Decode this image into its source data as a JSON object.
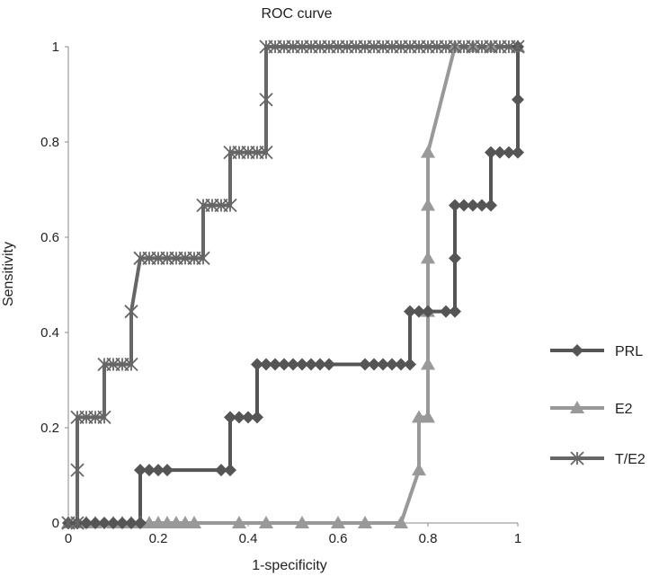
{
  "chart_data": {
    "type": "line",
    "title": "ROC curve",
    "xlabel": "1-specificity",
    "ylabel": "Sensitivity",
    "xlim": [
      0,
      1
    ],
    "ylim": [
      0,
      1
    ],
    "x_ticks": [
      "0",
      "0.2",
      "0.4",
      "0.6",
      "0.8",
      "1"
    ],
    "y_ticks": [
      "0",
      "0.2",
      "0.4",
      "0.6",
      "0.8",
      "1"
    ],
    "grid": false,
    "legend_position": "right",
    "series": [
      {
        "name": "PRL",
        "marker": "diamond",
        "color": "#555555",
        "points": [
          [
            0,
            0
          ],
          [
            0.02,
            0
          ],
          [
            0.04,
            0
          ],
          [
            0.06,
            0
          ],
          [
            0.08,
            0
          ],
          [
            0.1,
            0
          ],
          [
            0.12,
            0
          ],
          [
            0.14,
            0
          ],
          [
            0.16,
            0
          ],
          [
            0.16,
            0.111
          ],
          [
            0.18,
            0.111
          ],
          [
            0.2,
            0.111
          ],
          [
            0.22,
            0.111
          ],
          [
            0.34,
            0.111
          ],
          [
            0.36,
            0.111
          ],
          [
            0.36,
            0.222
          ],
          [
            0.38,
            0.222
          ],
          [
            0.4,
            0.222
          ],
          [
            0.42,
            0.222
          ],
          [
            0.42,
            0.333
          ],
          [
            0.44,
            0.333
          ],
          [
            0.46,
            0.333
          ],
          [
            0.48,
            0.333
          ],
          [
            0.5,
            0.333
          ],
          [
            0.52,
            0.333
          ],
          [
            0.54,
            0.333
          ],
          [
            0.56,
            0.333
          ],
          [
            0.58,
            0.333
          ],
          [
            0.66,
            0.333
          ],
          [
            0.68,
            0.333
          ],
          [
            0.7,
            0.333
          ],
          [
            0.72,
            0.333
          ],
          [
            0.74,
            0.333
          ],
          [
            0.76,
            0.333
          ],
          [
            0.76,
            0.444
          ],
          [
            0.78,
            0.444
          ],
          [
            0.8,
            0.444
          ],
          [
            0.84,
            0.444
          ],
          [
            0.86,
            0.444
          ],
          [
            0.86,
            0.556
          ],
          [
            0.86,
            0.667
          ],
          [
            0.88,
            0.667
          ],
          [
            0.9,
            0.667
          ],
          [
            0.92,
            0.667
          ],
          [
            0.94,
            0.667
          ],
          [
            0.94,
            0.778
          ],
          [
            0.96,
            0.778
          ],
          [
            0.98,
            0.778
          ],
          [
            1,
            0.778
          ],
          [
            1,
            0.889
          ],
          [
            1,
            1
          ]
        ]
      },
      {
        "name": "E2",
        "marker": "triangle",
        "color": "#999999",
        "points": [
          [
            0,
            0
          ],
          [
            0.02,
            0
          ],
          [
            0.04,
            0
          ],
          [
            0.06,
            0
          ],
          [
            0.1,
            0
          ],
          [
            0.12,
            0
          ],
          [
            0.14,
            0
          ],
          [
            0.16,
            0
          ],
          [
            0.18,
            0
          ],
          [
            0.2,
            0
          ],
          [
            0.22,
            0
          ],
          [
            0.24,
            0
          ],
          [
            0.26,
            0
          ],
          [
            0.28,
            0
          ],
          [
            0.38,
            0
          ],
          [
            0.44,
            0
          ],
          [
            0.52,
            0
          ],
          [
            0.6,
            0
          ],
          [
            0.66,
            0
          ],
          [
            0.74,
            0
          ],
          [
            0.78,
            0.111
          ],
          [
            0.78,
            0.222
          ],
          [
            0.8,
            0.222
          ],
          [
            0.8,
            0.333
          ],
          [
            0.8,
            0.444
          ],
          [
            0.8,
            0.556
          ],
          [
            0.8,
            0.667
          ],
          [
            0.8,
            0.778
          ],
          [
            0.86,
            1
          ],
          [
            0.9,
            1
          ],
          [
            0.94,
            1
          ],
          [
            1,
            1
          ]
        ]
      },
      {
        "name": "T/E2",
        "marker": "asterisk",
        "color": "#666666",
        "points": [
          [
            0,
            0
          ],
          [
            0.02,
            0
          ],
          [
            0.02,
            0.111
          ],
          [
            0.02,
            0.222
          ],
          [
            0.04,
            0.222
          ],
          [
            0.06,
            0.222
          ],
          [
            0.08,
            0.222
          ],
          [
            0.08,
            0.333
          ],
          [
            0.1,
            0.333
          ],
          [
            0.12,
            0.333
          ],
          [
            0.14,
            0.333
          ],
          [
            0.14,
            0.444
          ],
          [
            0.16,
            0.556
          ],
          [
            0.18,
            0.556
          ],
          [
            0.2,
            0.556
          ],
          [
            0.22,
            0.556
          ],
          [
            0.24,
            0.556
          ],
          [
            0.26,
            0.556
          ],
          [
            0.28,
            0.556
          ],
          [
            0.3,
            0.556
          ],
          [
            0.3,
            0.667
          ],
          [
            0.32,
            0.667
          ],
          [
            0.34,
            0.667
          ],
          [
            0.36,
            0.667
          ],
          [
            0.36,
            0.778
          ],
          [
            0.38,
            0.778
          ],
          [
            0.4,
            0.778
          ],
          [
            0.42,
            0.778
          ],
          [
            0.44,
            0.778
          ],
          [
            0.44,
            0.889
          ],
          [
            0.44,
            1
          ],
          [
            0.46,
            1
          ],
          [
            0.48,
            1
          ],
          [
            0.5,
            1
          ],
          [
            0.52,
            1
          ],
          [
            0.54,
            1
          ],
          [
            0.56,
            1
          ],
          [
            0.58,
            1
          ],
          [
            0.6,
            1
          ],
          [
            0.62,
            1
          ],
          [
            0.64,
            1
          ],
          [
            0.66,
            1
          ],
          [
            0.68,
            1
          ],
          [
            0.7,
            1
          ],
          [
            0.72,
            1
          ],
          [
            0.74,
            1
          ],
          [
            0.76,
            1
          ],
          [
            0.78,
            1
          ],
          [
            0.8,
            1
          ],
          [
            0.82,
            1
          ],
          [
            0.84,
            1
          ],
          [
            0.86,
            1
          ],
          [
            0.88,
            1
          ],
          [
            0.9,
            1
          ],
          [
            0.92,
            1
          ],
          [
            0.94,
            1
          ],
          [
            0.96,
            1
          ],
          [
            0.98,
            1
          ],
          [
            1,
            1
          ]
        ]
      }
    ]
  }
}
